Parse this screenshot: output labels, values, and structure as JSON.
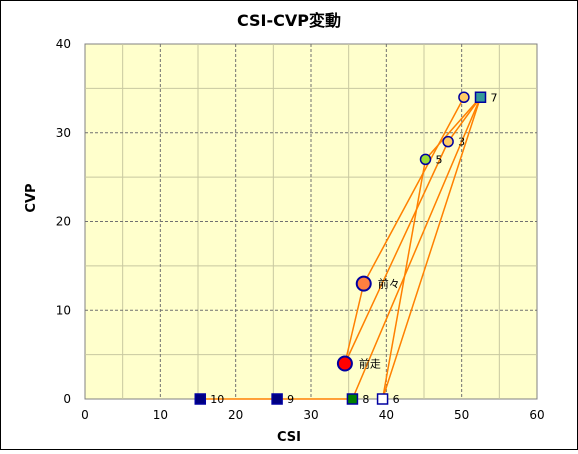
{
  "chart_data": {
    "type": "scatter",
    "title": "CSI-CVP変動",
    "xlabel": "CSI",
    "ylabel": "CVP",
    "xlim": [
      0,
      60
    ],
    "ylim": [
      0,
      40
    ],
    "xticks": [
      0,
      10,
      20,
      30,
      40,
      50,
      60
    ],
    "yticks": [
      0,
      10,
      20,
      30,
      40
    ],
    "grid": true,
    "plot_background": "#ffffcc",
    "line_color": "#ff8000",
    "points": [
      {
        "label": "前走",
        "x": 34.5,
        "y": 4,
        "marker": "circle",
        "size": "large",
        "fill": "#ff0000",
        "stroke": "#0000a0"
      },
      {
        "label": "前々",
        "x": 37,
        "y": 13,
        "marker": "circle",
        "size": "large",
        "fill": "#ff8040",
        "stroke": "#0000a0"
      },
      {
        "label": "",
        "x": 50.3,
        "y": 34,
        "marker": "circle",
        "size": "small",
        "fill": "#ffcc66",
        "stroke": "#0000a0"
      },
      {
        "label": "3",
        "x": 48.2,
        "y": 29,
        "marker": "circle",
        "size": "small",
        "fill": "#ffcc66",
        "stroke": "#0000a0"
      },
      {
        "label": "5",
        "x": 45.2,
        "y": 27,
        "marker": "circle",
        "size": "small",
        "fill": "#99dd33",
        "stroke": "#0000a0"
      },
      {
        "label": "6",
        "x": 39.5,
        "y": 0,
        "marker": "square",
        "size": "small",
        "fill": "#ffffff",
        "stroke": "#0000a0"
      },
      {
        "label": "7",
        "x": 52.5,
        "y": 34,
        "marker": "square",
        "size": "small",
        "fill": "#339999",
        "stroke": "#0000a0"
      },
      {
        "label": "8",
        "x": 35.5,
        "y": 0,
        "marker": "square",
        "size": "small",
        "fill": "#008000",
        "stroke": "#0000a0"
      },
      {
        "label": "9",
        "x": 25.5,
        "y": 0,
        "marker": "square",
        "size": "small",
        "fill": "#000080",
        "stroke": "#0000a0"
      },
      {
        "label": "10",
        "x": 15.3,
        "y": 0,
        "marker": "square",
        "size": "small",
        "fill": "#000080",
        "stroke": "#0000a0"
      }
    ],
    "segments": [
      [
        [
          34.5,
          4
        ],
        [
          37,
          13
        ]
      ],
      [
        [
          37,
          13
        ],
        [
          50.3,
          34
        ]
      ],
      [
        [
          34.5,
          4
        ],
        [
          48.2,
          29
        ]
      ],
      [
        [
          48.2,
          29
        ],
        [
          52.5,
          34
        ]
      ],
      [
        [
          45.2,
          27
        ],
        [
          52.5,
          34
        ]
      ],
      [
        [
          45.2,
          27
        ],
        [
          39.5,
          0
        ]
      ],
      [
        [
          39.5,
          0
        ],
        [
          52.5,
          34
        ]
      ],
      [
        [
          35.5,
          0
        ],
        [
          52.5,
          34
        ]
      ],
      [
        [
          15.3,
          0
        ],
        [
          35.5,
          0
        ]
      ]
    ]
  }
}
